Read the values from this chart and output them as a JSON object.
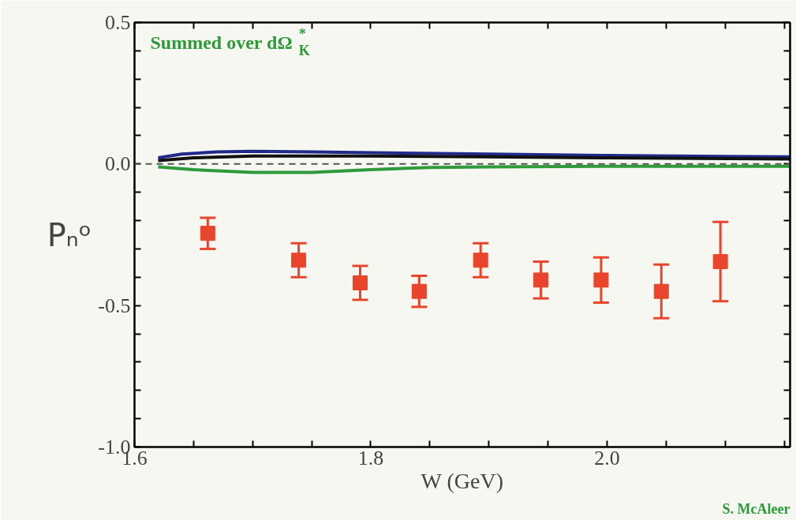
{
  "chart_data": {
    "type": "line",
    "xlabel": "W (GeV)",
    "ylabel": "Pₙᵒ",
    "annotations": [
      "Summed over dΩ$^{*}$$_{K}$",
      "S. McAleer"
    ],
    "xlim": [
      1.6,
      2.155
    ],
    "ylim": [
      -1.0,
      0.5
    ],
    "xticks": [
      1.6,
      {
        "value": 1.65,
        "label": null
      },
      {
        "value": 1.7,
        "label": null
      },
      {
        "value": 1.75,
        "label": null
      },
      1.8,
      {
        "value": 1.85,
        "label": null
      },
      {
        "value": 1.9,
        "label": null
      },
      {
        "value": 1.95,
        "label": null
      },
      {
        "value": 2.0,
        "label": "2.0"
      },
      {
        "value": 2.05,
        "label": null
      },
      {
        "value": 2.1,
        "label": null
      },
      {
        "value": 2.15,
        "label": null
      }
    ],
    "yticks": [
      {
        "value": -1.0,
        "label": "-1.0"
      },
      {
        "value": -0.9,
        "label": null
      },
      {
        "value": -0.8,
        "label": null
      },
      {
        "value": -0.7,
        "label": null
      },
      {
        "value": -0.6,
        "label": null
      },
      -0.5,
      {
        "value": -0.4,
        "label": null
      },
      {
        "value": -0.3,
        "label": null
      },
      {
        "value": -0.2,
        "label": null
      },
      {
        "value": -0.1,
        "label": null
      },
      {
        "value": 0.0,
        "label": "0.0"
      },
      {
        "value": 0.1,
        "label": null
      },
      {
        "value": 0.2,
        "label": null
      },
      {
        "value": 0.3,
        "label": null
      },
      {
        "value": 0.4,
        "label": null
      },
      0.5
    ],
    "grid": false,
    "ref_lines": [
      {
        "axis": "y",
        "value": 0.0,
        "color": "#555555",
        "line_style": "dashed"
      }
    ],
    "series": [
      {
        "color": "#1f2a8a",
        "x": [
          1.62,
          1.64,
          1.67,
          1.7,
          1.75,
          1.8,
          1.9,
          2.0,
          2.1,
          2.155
        ],
        "values": [
          0.022,
          0.035,
          0.043,
          0.045,
          0.043,
          0.04,
          0.035,
          0.03,
          0.027,
          0.025
        ]
      },
      {
        "color": "#111111",
        "x": [
          1.62,
          1.65,
          1.7,
          1.8,
          1.9,
          2.0,
          2.155
        ],
        "values": [
          0.012,
          0.022,
          0.028,
          0.028,
          0.025,
          0.022,
          0.018
        ]
      },
      {
        "color": "#2e9a3a",
        "x": [
          1.62,
          1.65,
          1.7,
          1.75,
          1.8,
          1.85,
          1.9,
          2.0,
          2.155
        ],
        "values": [
          -0.01,
          -0.02,
          -0.03,
          -0.03,
          -0.02,
          -0.012,
          -0.01,
          -0.008,
          -0.008
        ]
      },
      {
        "type": "scatter",
        "marker": "square",
        "color": "#e8452c",
        "x": [
          1.662,
          1.739,
          1.791,
          1.841,
          1.893,
          1.944,
          1.995,
          2.046,
          2.096
        ],
        "values": [
          -0.245,
          -0.34,
          -0.42,
          -0.45,
          -0.34,
          -0.41,
          -0.41,
          -0.45,
          -0.345
        ],
        "errors": [
          0.055,
          0.06,
          0.06,
          0.055,
          0.06,
          0.065,
          0.08,
          0.095,
          0.14
        ]
      }
    ]
  }
}
